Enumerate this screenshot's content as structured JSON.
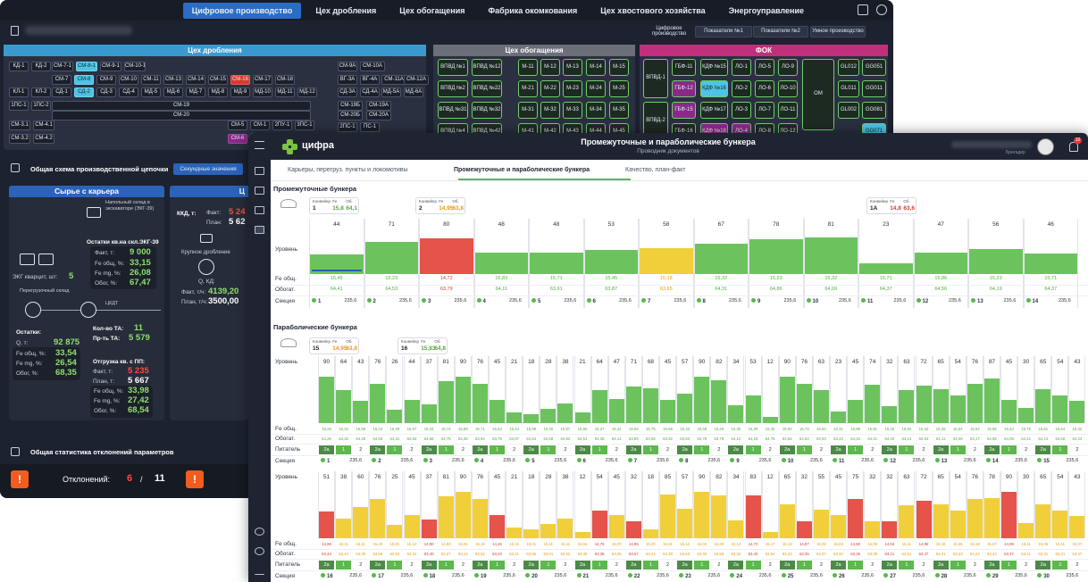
{
  "dark": {
    "nav": [
      "Цифровое производство",
      "Цех дробления",
      "Цех обогащения",
      "Фабрика окомкования",
      "Цех хвостового хозяйства",
      "Энергоуправление"
    ],
    "sub_buttons": [
      "Цифровое производство",
      "Показатели №1",
      "Показатели №2",
      "Умное производство"
    ],
    "panels": {
      "crush": "Цех дробления",
      "enrich": "Цех обогащения",
      "fok": "ФОК"
    },
    "crush_cells": [
      [
        "КД-1",
        "КД-2",
        "СМ-7-1",
        "СМ-8-1",
        "СМ-9-1",
        "СМ-10-1"
      ],
      [
        "СМ-7",
        "СМ-8",
        "СМ-9",
        "СМ-10",
        "СМ-11",
        "СМ-13",
        "СМ-14",
        "СМ-15",
        "СМ-16",
        "СМ-17",
        "СМ-18"
      ],
      [
        "КЛ-1",
        "КЛ-2",
        "СД-1",
        "СД-2",
        "СД-3",
        "СД-4",
        "МД-5",
        "МД-6",
        "МД-7",
        "МД-8",
        "МД-9",
        "МД-10",
        "МД-11",
        "МД-12"
      ],
      [
        "1ПС-1",
        "1ПС-2",
        "СМ-19",
        "СМ-20"
      ],
      [
        "СМ-3.1",
        "СМ-4.1",
        "СМ-5",
        "СМ-1",
        "2ПУ-1",
        "3ПС-1"
      ],
      [
        "СМ-3.2",
        "СМ-4.2",
        "СМ-6"
      ]
    ],
    "crush_right": [
      "СМ-9А",
      "СМ-10А",
      "ВГ-3А",
      "ВГ-4А",
      "СМ-11А",
      "СМ-12А",
      "СД-3А",
      "СД-4А",
      "МД-5А",
      "МД-6А",
      "СМ-19Б",
      "СМ-19А",
      "СМ-20Б",
      "СМ-20А",
      "2ПС-1",
      "ПС-1"
    ],
    "enrich_cells": [
      "ВПВД №1",
      "ВПВД №12",
      "М-11",
      "М-12",
      "М-13",
      "М-14",
      "М-15",
      "ВПВД №2",
      "ВПВД №22",
      "М-21",
      "М-22",
      "М-23",
      "М-24",
      "М-25",
      "ВПВД №31",
      "ВПВД №32",
      "М-31",
      "М-32",
      "М-33",
      "М-34",
      "М-35",
      "ВПВД №4",
      "ВПВД №42",
      "М-41",
      "М-42",
      "М-43",
      "М-44",
      "М-45"
    ],
    "fok_cells": [
      "ВПВД-1",
      "ГБФ-11",
      "КДФ №15",
      "ЛО-1",
      "ЛО-5",
      "ЛО-9",
      "ОМ",
      "GL012",
      "GG051",
      "ГБФ-12",
      "КДФ №16",
      "ЛО-2",
      "ЛО-6",
      "ЛО-10",
      "GL011",
      "GG011",
      "ВПВД-2",
      "ГБФ-15",
      "КДФ №17",
      "ЛО-3",
      "ЛО-7",
      "ЛО-11",
      "GL002",
      "GG081",
      "ГБФ-16",
      "КДФ №18",
      "ЛО-4",
      "ЛО-8",
      "ЛО-12",
      "GG071"
    ],
    "chain_title": "Общая схема производственной цепочки",
    "chain_btn": "Секундные значения",
    "quarry_title": "Сырье с карьера",
    "quarry_right_title": "Ц",
    "excavator_note": "Напольный склад в экскаваторе (ЭКГ-39)",
    "ostatki_excav_title": "Остатки кв.на скл.ЭКГ-39",
    "fakt_t_label": "Факт, т:",
    "fakt_t_val": "9 000",
    "fe_obsh_label": "Fe общ, %:",
    "fe_obsh_val": "33,15",
    "fe_mg_label": "Fe mg, %:",
    "fe_mg_val": "26,08",
    "obog_label": "Обог, %:",
    "obog_val": "67,47",
    "ekg_label": "ЭКГ кварцит, шт:",
    "ekg_val": "5",
    "pereg_label": "Перегрузочный склад",
    "ckdt": "ЦКДТ",
    "ost_label": "Остатки:",
    "q_label": "Q, т:",
    "q_val": "92 875",
    "fe_ob2": "33,54",
    "fe_mg2": "26,54",
    "obog2": "68,35",
    "kolvo_ta_label": "Кол-во ТА:",
    "kolvo_ta_val": "11",
    "prta_label": "Пр-ть ТА:",
    "prta_val": "5 579",
    "otgr_label": "Отгрузка кв. с ПП:",
    "otgr_fakt_val": "5 235",
    "otgr_plan_label": "План, т:",
    "otgr_plan_val": "5 667",
    "fe_ob3": "33,98",
    "fe_mg3": "27,42",
    "obog3": "68,54",
    "kkd_label": "ККД, т:",
    "kkd_fakt_label": "Факт:",
    "kkd_fakt_val": "5 24",
    "kkd_plan_label": "План:",
    "kkd_plan_val": "5 62",
    "krup_label": "Крупное дробление",
    "q_th_label": "Q, КД:",
    "fakt_th_label": "Факт, т/ч:",
    "fakt_th_val": "4139,20",
    "plan_th_label": "План, т/ч:",
    "plan_th_val": "3500,00",
    "stat_title": "Общая статистика отклонений параметров",
    "dev_label": "Отклонений:",
    "dev_val": "6",
    "dev_sep": "/",
    "dev_total": "11"
  },
  "front": {
    "brand": "цифра",
    "page_title": "Промежуточные и параболические бункера",
    "page_subtitle": "Проводник документов",
    "user_role": "Бригадир",
    "notif_count": "10",
    "tabs": [
      "Карьеры, перегруз. пункты и локомотивы",
      "Промежуточные и параболические бункера",
      "Качество, план-факт"
    ],
    "sec_inter": "Промежуточные бункера",
    "sec_para": "Параболические бункера",
    "row_labels": {
      "level": "Уровень",
      "fe": "Fe общ.",
      "obog": "Обогат.",
      "pitatel": "Питатель",
      "section": "Секция"
    },
    "conv_labels": {
      "konv": "Конвейер",
      "fe": "Fe",
      "ob": "Об."
    },
    "inter_convs": [
      {
        "id": "1",
        "fe": "15,8",
        "ob": "64,1",
        "col": "g"
      },
      {
        "id": "2",
        "fe": "14,95",
        "ob": "63,8",
        "col": "o"
      },
      {
        "id": "1А",
        "fe": "14,8",
        "ob": "63,6",
        "col": "r"
      }
    ],
    "para_convs": [
      {
        "id": "15",
        "fe": "14,95",
        "ob": "63,8",
        "col": "o"
      },
      {
        "id": "16",
        "fe": "15,83",
        "ob": "64,8",
        "col": "g"
      }
    ],
    "inter": [
      {
        "level": 44,
        "fe": "15,45",
        "ob": "64,41",
        "sec": "1",
        "sv": "235,6",
        "c": "g"
      },
      {
        "level": 71,
        "fe": "15,23",
        "ob": "64,53",
        "sec": "2",
        "sv": "235,6",
        "c": "g"
      },
      {
        "level": 80,
        "fe": "14,72",
        "ob": "63,79",
        "sec": "3",
        "sv": "235,6",
        "c": "r"
      },
      {
        "level": 48,
        "fe": "15,83",
        "ob": "64,11",
        "sec": "4",
        "sv": "235,6",
        "c": "g"
      },
      {
        "level": 48,
        "fe": "15,71",
        "ob": "63,91",
        "sec": "5",
        "sv": "235,6",
        "c": "g"
      },
      {
        "level": 53,
        "fe": "15,45",
        "ob": "63,87",
        "sec": "6",
        "sv": "235,6",
        "c": "g"
      },
      {
        "level": 58,
        "fe": "15,18",
        "ob": "63,65",
        "sec": "7",
        "sv": "235,6",
        "c": "y"
      },
      {
        "level": 67,
        "fe": "15,32",
        "ob": "64,31",
        "sec": "8",
        "sv": "235,6",
        "c": "g"
      },
      {
        "level": 78,
        "fe": "15,23",
        "ob": "64,86",
        "sec": "9",
        "sv": "235,6",
        "c": "g"
      },
      {
        "level": 81,
        "fe": "15,32",
        "ob": "64,09",
        "sec": "10",
        "sv": "235,6",
        "c": "g"
      },
      {
        "level": 23,
        "fe": "15,71",
        "ob": "64,37",
        "sec": "11",
        "sv": "235,6",
        "c": "g"
      },
      {
        "level": 47,
        "fe": "15,86",
        "ob": "64,56",
        "sec": "12",
        "sv": "235,6",
        "c": "g"
      },
      {
        "level": 56,
        "fe": "15,23",
        "ob": "64,19",
        "sec": "13",
        "sv": "235,6",
        "c": "g"
      },
      {
        "level": 46,
        "fe": "15,71",
        "ob": "64,37",
        "sec": "14",
        "sv": "235,6",
        "c": "g"
      }
    ],
    "para1": [
      {
        "sec": "1",
        "sv": "235,6",
        "c": "g",
        "lv": [
          90,
          64,
          43
        ],
        "fe": [
          "15,28",
          "15,34",
          "15,98"
        ],
        "ob": [
          "64,26",
          "64,32",
          "64,28"
        ],
        "pit": [
          "2а",
          "1",
          "2"
        ]
      },
      {
        "sec": "2",
        "sv": "235,6",
        "c": "g",
        "lv": [
          76,
          26,
          44
        ],
        "fe": [
          "15,44",
          "15,28",
          "15,67"
        ],
        "ob": [
          "64,56",
          "64,31",
          "64,64"
        ],
        "pit": [
          "2а",
          "1",
          "2"
        ]
      },
      {
        "sec": "3",
        "sv": "235,6",
        "c": "g",
        "lv": [
          37,
          81,
          90
        ],
        "fe": [
          "15,34",
          "15,74",
          "15,88"
        ],
        "ob": [
          "64,66",
          "64,75",
          "64,36"
        ],
        "pit": [
          "2а",
          "1",
          "2"
        ]
      },
      {
        "sec": "4",
        "sv": "235,6",
        "c": "g",
        "lv": [
          76,
          45,
          21
        ],
        "fe": [
          "15,71",
          "15,64",
          "15,44"
        ],
        "ob": [
          "63,94",
          "63,79",
          "63,97"
        ],
        "pit": [
          "2а",
          "1",
          "2"
        ]
      },
      {
        "sec": "5",
        "sv": "235,6",
        "c": "g",
        "lv": [
          18,
          28,
          38
        ],
        "fe": [
          "15,89",
          "15,30",
          "15,87"
        ],
        "ob": [
          "64,54",
          "64,58",
          "64,92"
        ],
        "pit": [
          "2а",
          "1",
          "2"
        ]
      },
      {
        "sec": "6",
        "sv": "235,6",
        "c": "g",
        "lv": [
          21,
          64,
          47
        ],
        "fe": [
          "15,80",
          "15,27",
          "15,44"
        ],
        "ob": [
          "64,51",
          "64,38",
          "64,14"
        ],
        "pit": [
          "2а",
          "1",
          "2"
        ]
      },
      {
        "sec": "7",
        "sv": "235,6",
        "c": "g",
        "lv": [
          71,
          68,
          45
        ],
        "fe": [
          "15,66",
          "15,75",
          "15,58"
        ],
        "ob": [
          "63,89",
          "63,56",
          "63,92"
        ],
        "pit": [
          "2а",
          "1",
          "2"
        ]
      },
      {
        "sec": "8",
        "sv": "235,6",
        "c": "g",
        "lv": [
          57,
          90,
          82
        ],
        "fe": [
          "15,33",
          "15,68",
          "15,29"
        ],
        "ob": [
          "63,93",
          "63,78",
          "63,79"
        ],
        "pit": [
          "2а",
          "1",
          "2"
        ]
      },
      {
        "sec": "9",
        "sv": "235,6",
        "c": "g",
        "lv": [
          34,
          53,
          12
        ],
        "fe": [
          "15,30",
          "15,28",
          "15,45"
        ],
        "ob": [
          "64,12",
          "64,18",
          "64,76"
        ],
        "pit": [
          "2а",
          "1",
          "2"
        ]
      },
      {
        "sec": "10",
        "sv": "235,6",
        "c": "g",
        "lv": [
          90,
          76,
          63
        ],
        "fe": [
          "15,92",
          "15,78",
          "15,64"
        ],
        "ob": [
          "64,54",
          "64,52",
          "63,93"
        ],
        "pit": [
          "2а",
          "1",
          "2"
        ]
      },
      {
        "sec": "11",
        "sv": "235,6",
        "c": "g",
        "lv": [
          23,
          45,
          74
        ],
        "fe": [
          "15,31",
          "15,88",
          "15,81"
        ],
        "ob": [
          "64,34",
          "64,34",
          "64,41"
        ],
        "pit": [
          "2а",
          "1",
          "2"
        ]
      },
      {
        "sec": "12",
        "sv": "235,6",
        "c": "g",
        "lv": [
          32,
          63,
          72
        ],
        "fe": [
          "15,25",
          "15,84",
          "15,33"
        ],
        "ob": [
          "64,40",
          "64,13",
          "64,63"
        ],
        "pit": [
          "2а",
          "1",
          "2"
        ]
      },
      {
        "sec": "13",
        "sv": "235,6",
        "c": "g",
        "lv": [
          65,
          54,
          76
        ],
        "fe": [
          "15,25",
          "15,64",
          "15,62"
        ],
        "ob": [
          "64,11",
          "64,06",
          "64,17"
        ],
        "pit": [
          "2а",
          "1",
          "2"
        ]
      },
      {
        "sec": "14",
        "sv": "235,6",
        "c": "g",
        "lv": [
          87,
          45,
          30
        ],
        "fe": [
          "15,86",
          "15,64",
          "15,75"
        ],
        "ob": [
          "64,58",
          "64,05",
          "64,41"
        ],
        "pit": [
          "2а",
          "1",
          "2"
        ]
      },
      {
        "sec": "15",
        "sv": "235,6",
        "c": "g",
        "lv": [
          65,
          54,
          43
        ],
        "fe": [
          "15,81",
          "15,64",
          "15,42"
        ],
        "ob": [
          "64,13",
          "64,58",
          "64,24"
        ],
        "pit": [
          "2а",
          "1",
          "2"
        ]
      }
    ],
    "para2": [
      {
        "sec": "16",
        "sv": "235,6",
        "lv": [
          51,
          38,
          60
        ],
        "col": [
          "r",
          "y",
          "y"
        ],
        "fe": [
          "14,98",
          "15,11",
          "15,11"
        ],
        "ob": [
          "63,44",
          "63,44",
          "63,39"
        ],
        "pit": [
          "2а",
          "1",
          "2"
        ]
      },
      {
        "sec": "17",
        "sv": "235,6",
        "lv": [
          76,
          25,
          45
        ],
        "col": [
          "y",
          "y",
          "y"
        ],
        "fe": [
          "15,20",
          "15,01",
          "15,12"
        ],
        "ob": [
          "63,58",
          "63,53",
          "63,31"
        ],
        "pit": [
          "2а",
          "1",
          "2"
        ]
      },
      {
        "sec": "18",
        "sv": "235,6",
        "lv": [
          37,
          81,
          90
        ],
        "col": [
          "r",
          "y",
          "y"
        ],
        "fe": [
          "14,90",
          "14,83",
          "15,01"
        ],
        "ob": [
          "63,40",
          "63,27",
          "63,14"
        ],
        "pit": [
          "2а",
          "1",
          "2"
        ]
      },
      {
        "sec": "19",
        "sv": "235,6",
        "lv": [
          76,
          45,
          21
        ],
        "col": [
          "y",
          "r",
          "y"
        ],
        "fe": [
          "15,19",
          "14,26",
          "15,16"
        ],
        "ob": [
          "63,52",
          "63,43",
          "63,21"
        ],
        "pit": [
          "2а",
          "1",
          "2"
        ]
      },
      {
        "sec": "20",
        "sv": "235,6",
        "lv": [
          18,
          28,
          38
        ],
        "col": [
          "y",
          "y",
          "y"
        ],
        "fe": [
          "15,01",
          "15,11",
          "15,11"
        ],
        "ob": [
          "63,56",
          "63,61",
          "63,52"
        ],
        "pit": [
          "2а",
          "1",
          "2"
        ]
      },
      {
        "sec": "21",
        "sv": "235,6",
        "lv": [
          12,
          54,
          45
        ],
        "col": [
          "y",
          "r",
          "y"
        ],
        "fe": [
          "15,03",
          "14,75",
          "15,07"
        ],
        "ob": [
          "63,40",
          "63,38",
          "63,25"
        ],
        "pit": [
          "2а",
          "1",
          "2"
        ]
      },
      {
        "sec": "22",
        "sv": "235,6",
        "lv": [
          32,
          18,
          85
        ],
        "col": [
          "r",
          "y",
          "y"
        ],
        "fe": [
          "14,85",
          "15,20",
          "15,01"
        ],
        "ob": [
          "63,57",
          "63,44",
          "63,38"
        ],
        "pit": [
          "2а",
          "1",
          "2"
        ]
      },
      {
        "sec": "23",
        "sv": "235,6",
        "lv": [
          57,
          90,
          82
        ],
        "col": [
          "y",
          "y",
          "y"
        ],
        "fe": [
          "15,12",
          "15,04",
          "15,20"
        ],
        "ob": [
          "63,53",
          "63,30",
          "63,59"
        ],
        "pit": [
          "2а",
          "1",
          "2"
        ]
      },
      {
        "sec": "24",
        "sv": "235,6",
        "lv": [
          34,
          83,
          12
        ],
        "col": [
          "y",
          "r",
          "y"
        ],
        "fe": [
          "15,13",
          "14,72",
          "15,17"
        ],
        "ob": [
          "63,34",
          "63,40",
          "63,54"
        ],
        "pit": [
          "2а",
          "1",
          "2"
        ]
      },
      {
        "sec": "25",
        "sv": "235,6",
        "lv": [
          65,
          32,
          55
        ],
        "col": [
          "y",
          "r",
          "y"
        ],
        "fe": [
          "15,13",
          "14,87",
          "15,02"
        ],
        "ob": [
          "63,24",
          "63,35",
          "63,37"
        ],
        "pit": [
          "2а",
          "1",
          "2"
        ]
      },
      {
        "sec": "26",
        "sv": "235,6",
        "lv": [
          45,
          75,
          32
        ],
        "col": [
          "y",
          "r",
          "y"
        ],
        "fe": [
          "15,03",
          "14,80",
          "15,06"
        ],
        "ob": [
          "63,40",
          "63,26",
          "63,38"
        ],
        "pit": [
          "2а",
          "1",
          "2"
        ]
      },
      {
        "sec": "27",
        "sv": "235,6",
        "lv": [
          32,
          63,
          72
        ],
        "col": [
          "r",
          "y",
          "r"
        ],
        "fe": [
          "14,93",
          "15,11",
          "14,98"
        ],
        "ob": [
          "63,21",
          "63,51",
          "63,47"
        ],
        "pit": [
          "2а",
          "1",
          "2"
        ]
      },
      {
        "sec": "28",
        "sv": "235,6",
        "lv": [
          65,
          54,
          76
        ],
        "col": [
          "y",
          "y",
          "y"
        ],
        "fe": [
          "15,15",
          "15,05",
          "15,18"
        ],
        "ob": [
          "63,31",
          "63,23",
          "63,24"
        ],
        "pit": [
          "2а",
          "1",
          "2"
        ]
      },
      {
        "sec": "29",
        "sv": "235,6",
        "lv": [
          78,
          90,
          30
        ],
        "col": [
          "y",
          "r",
          "y"
        ],
        "fe": [
          "15,07",
          "14,89",
          "15,11"
        ],
        "ob": [
          "63,43",
          "63,37",
          "63,41"
        ],
        "pit": [
          "2а",
          "1",
          "2"
        ]
      },
      {
        "sec": "30",
        "sv": "235,6",
        "lv": [
          65,
          54,
          43
        ],
        "col": [
          "y",
          "y",
          "y"
        ],
        "fe": [
          "15,06",
          "15,11",
          "15,07"
        ],
        "ob": [
          "63,41",
          "63,41",
          "63,47"
        ],
        "pit": [
          "2а",
          "1",
          "2"
        ]
      }
    ]
  }
}
